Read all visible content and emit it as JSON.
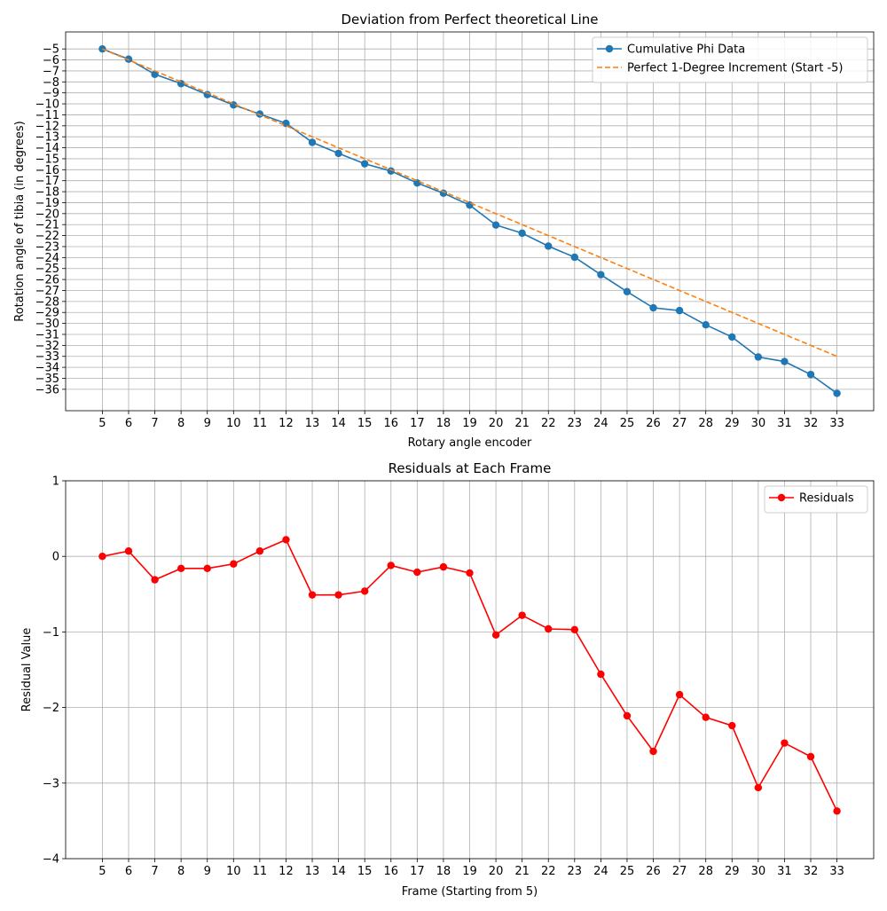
{
  "chart_data": [
    {
      "type": "line",
      "title": "Deviation from Perfect theoretical Line",
      "xlabel": "Rotary angle encoder",
      "ylabel": "Rotation angle of tibia (in degrees)",
      "x": [
        5,
        6,
        7,
        8,
        9,
        10,
        11,
        12,
        13,
        14,
        15,
        16,
        17,
        18,
        19,
        20,
        21,
        22,
        23,
        24,
        25,
        26,
        27,
        28,
        29,
        30,
        31,
        32,
        33
      ],
      "xlim": [
        3.6,
        34.4
      ],
      "ylim": [
        -37.95,
        -3.45
      ],
      "xticks": [
        5,
        6,
        7,
        8,
        9,
        10,
        11,
        12,
        13,
        14,
        15,
        16,
        17,
        18,
        19,
        20,
        21,
        22,
        23,
        24,
        25,
        26,
        27,
        28,
        29,
        30,
        31,
        32,
        33
      ],
      "yticks": [
        -5,
        -6,
        -7,
        -8,
        -9,
        -10,
        -11,
        -12,
        -13,
        -14,
        -15,
        -16,
        -17,
        -18,
        -19,
        -20,
        -21,
        -22,
        -23,
        -24,
        -25,
        -26,
        -27,
        -28,
        -29,
        -30,
        -31,
        -32,
        -33,
        -34,
        -35,
        -36
      ],
      "ytick_labels": [
        "−5",
        "−6",
        "−7",
        "−8",
        "−9",
        "−10",
        "−11",
        "−12",
        "−13",
        "−14",
        "−15",
        "−16",
        "−17",
        "−18",
        "−19",
        "−20",
        "−21",
        "−22",
        "−23",
        "−24",
        "−25",
        "−26",
        "−27",
        "−28",
        "−29",
        "−30",
        "−31",
        "−32",
        "−33",
        "−34",
        "−35",
        "−36"
      ],
      "grid": true,
      "legend": "upper right",
      "series": [
        {
          "name": "Cumulative Phi Data",
          "color": "#1f77b4",
          "style": "solid",
          "marker": "circle",
          "values": [
            -5.0,
            -5.93,
            -7.31,
            -8.16,
            -9.16,
            -10.1,
            -10.93,
            -11.78,
            -13.51,
            -14.51,
            -15.46,
            -16.12,
            -17.21,
            -18.14,
            -19.22,
            -21.04,
            -21.78,
            -22.96,
            -23.97,
            -25.56,
            -27.11,
            -28.58,
            -28.83,
            -30.13,
            -31.24,
            -33.06,
            -33.47,
            -34.65,
            -36.37
          ]
        },
        {
          "name": "Perfect 1-Degree Increment (Start -5)",
          "color": "#ff7f0e",
          "style": "dashed",
          "marker": "none",
          "values": [
            -5,
            -6,
            -7,
            -8,
            -9,
            -10,
            -11,
            -12,
            -13,
            -14,
            -15,
            -16,
            -17,
            -18,
            -19,
            -20,
            -21,
            -22,
            -23,
            -24,
            -25,
            -26,
            -27,
            -28,
            -29,
            -30,
            -31,
            -32,
            -33
          ]
        }
      ]
    },
    {
      "type": "line",
      "title": "Residuals at Each Frame",
      "xlabel": "Frame (Starting from 5)",
      "ylabel": "Residual Value",
      "x": [
        5,
        6,
        7,
        8,
        9,
        10,
        11,
        12,
        13,
        14,
        15,
        16,
        17,
        18,
        19,
        20,
        21,
        22,
        23,
        24,
        25,
        26,
        27,
        28,
        29,
        30,
        31,
        32,
        33
      ],
      "xlim": [
        3.6,
        34.4
      ],
      "ylim": [
        -4,
        1
      ],
      "xticks": [
        5,
        6,
        7,
        8,
        9,
        10,
        11,
        12,
        13,
        14,
        15,
        16,
        17,
        18,
        19,
        20,
        21,
        22,
        23,
        24,
        25,
        26,
        27,
        28,
        29,
        30,
        31,
        32,
        33
      ],
      "yticks": [
        1,
        0,
        -1,
        -2,
        -3,
        -4
      ],
      "ytick_labels": [
        "1",
        "0",
        "−1",
        "−2",
        "−3",
        "−4"
      ],
      "grid": true,
      "legend": "upper right",
      "series": [
        {
          "name": "Residuals",
          "color": "#ff0000",
          "style": "solid",
          "marker": "circle",
          "values": [
            0.0,
            0.07,
            -0.31,
            -0.16,
            -0.16,
            -0.1,
            0.07,
            0.22,
            -0.51,
            -0.51,
            -0.46,
            -0.12,
            -0.21,
            -0.14,
            -0.22,
            -1.04,
            -0.78,
            -0.96,
            -0.97,
            -1.56,
            -2.11,
            -2.58,
            -1.83,
            -2.13,
            -2.24,
            -3.06,
            -2.47,
            -2.65,
            -3.37
          ]
        }
      ]
    }
  ]
}
